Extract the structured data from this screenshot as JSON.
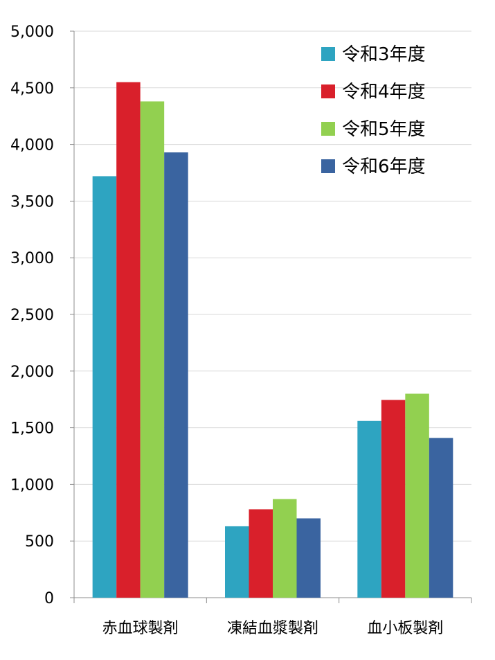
{
  "chart_data": {
    "type": "bar",
    "categories": [
      "赤血球製剤",
      "凍結血漿製剤",
      "血小板製剤"
    ],
    "series": [
      {
        "name": "令和3年度",
        "color": "#2ea4c1",
        "values": [
          3720,
          630,
          1560
        ]
      },
      {
        "name": "令和4年度",
        "color": "#d9202b",
        "values": [
          4550,
          780,
          1745
        ]
      },
      {
        "name": "令和5年度",
        "color": "#92d050",
        "values": [
          4380,
          870,
          1800
        ]
      },
      {
        "name": "令和6年度",
        "color": "#3a64a0",
        "values": [
          3930,
          700,
          1410
        ]
      }
    ],
    "ylim": [
      0,
      5000
    ],
    "yticks": [
      "0",
      "500",
      "1,000",
      "1,500",
      "2,000",
      "2,500",
      "3,000",
      "3,500",
      "4,000",
      "4,500",
      "5,000"
    ],
    "ytick_values": [
      0,
      500,
      1000,
      1500,
      2000,
      2500,
      3000,
      3500,
      4000,
      4500,
      5000
    ],
    "grid": true,
    "legend_position": "top-right"
  }
}
